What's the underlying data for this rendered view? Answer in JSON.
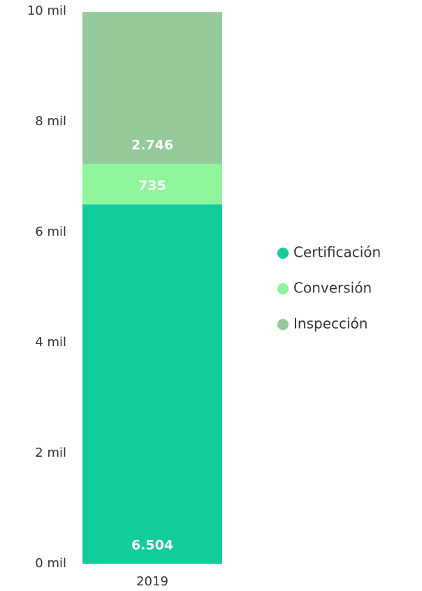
{
  "chart_data": {
    "type": "stacked_bar",
    "categories": [
      "2019"
    ],
    "series": [
      {
        "name": "Certificación",
        "color": "#12cc9c",
        "values": [
          6504
        ],
        "value_labels": [
          "6.504"
        ]
      },
      {
        "name": "Conversión",
        "color": "#8ef59b",
        "values": [
          735
        ],
        "value_labels": [
          "735"
        ]
      },
      {
        "name": "Inspección",
        "color": "#94c99a",
        "values": [
          2746
        ],
        "value_labels": [
          "2.746"
        ]
      }
    ],
    "ylim": [
      0,
      10000
    ],
    "yticks": [
      {
        "value": 0,
        "label": "0 mil"
      },
      {
        "value": 2000,
        "label": "2 mil"
      },
      {
        "value": 4000,
        "label": "4 mil"
      },
      {
        "value": 6000,
        "label": "6 mil"
      },
      {
        "value": 8000,
        "label": "8 mil"
      },
      {
        "value": 10000,
        "label": "10 mil"
      }
    ],
    "legend": "right"
  }
}
